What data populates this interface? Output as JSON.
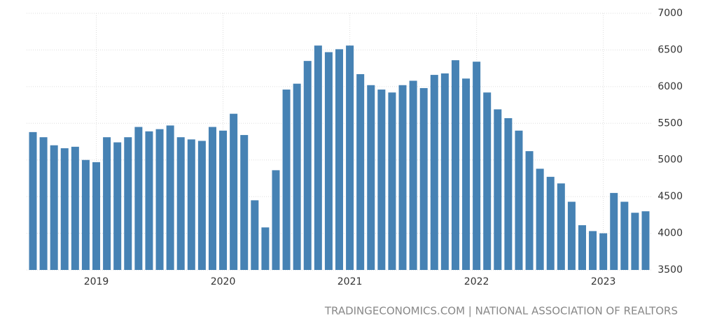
{
  "chart_data": {
    "type": "bar",
    "categories": [
      null,
      null,
      null,
      null,
      null,
      null,
      "2019",
      null,
      null,
      null,
      null,
      null,
      null,
      null,
      null,
      null,
      null,
      null,
      "2020",
      null,
      null,
      null,
      null,
      null,
      null,
      null,
      null,
      null,
      null,
      null,
      "2021",
      null,
      null,
      null,
      null,
      null,
      null,
      null,
      null,
      null,
      null,
      null,
      "2022",
      null,
      null,
      null,
      null,
      null,
      null,
      null,
      null,
      null,
      null,
      null,
      "2023",
      null,
      null,
      null,
      null
    ],
    "values": [
      5380,
      5310,
      5200,
      5160,
      5180,
      5000,
      4970,
      5310,
      5240,
      5310,
      5450,
      5390,
      5420,
      5470,
      5310,
      5280,
      5260,
      5450,
      5400,
      5630,
      5340,
      4450,
      4080,
      4860,
      5960,
      6040,
      6350,
      6560,
      6470,
      6510,
      6560,
      6170,
      6020,
      5960,
      5920,
      6020,
      6080,
      5980,
      6160,
      6180,
      6360,
      6110,
      6340,
      5920,
      5690,
      5570,
      5400,
      5120,
      4880,
      4770,
      4680,
      4430,
      4110,
      4030,
      4000,
      4550,
      4430,
      4280,
      4300
    ],
    "color": "#4682b4",
    "ylim": [
      3500,
      7000
    ],
    "yticks": [
      3500,
      4000,
      4500,
      5000,
      5500,
      6000,
      6500,
      7000
    ],
    "grid": true,
    "source": "TRADINGECONOMICS.COM | NATIONAL ASSOCIATION OF REALTORS"
  }
}
